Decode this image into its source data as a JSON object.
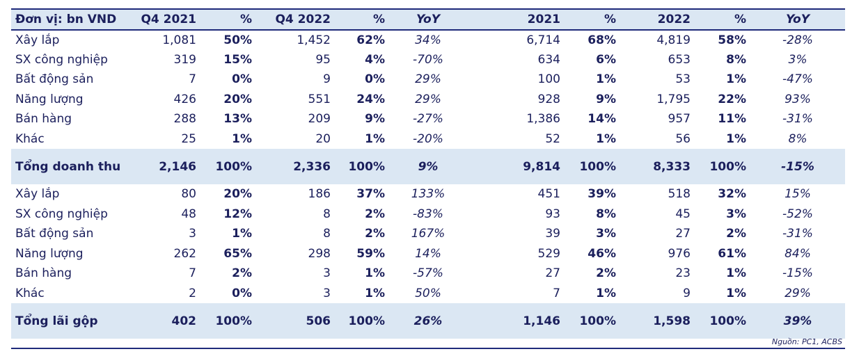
{
  "table": {
    "headers": [
      "Đơn vị: bn VND",
      "Q4 2021",
      "%",
      "Q4 2022",
      "%",
      "YoY",
      "2021",
      "%",
      "2022",
      "%",
      "YoY"
    ],
    "rows": [
      {
        "label": "Xây lắp",
        "cells": [
          "1,081",
          "50%",
          "1,452",
          "62%",
          "34%",
          "6,714",
          "68%",
          "4,819",
          "58%",
          "-28%"
        ]
      },
      {
        "label": "SX công nghiệp",
        "cells": [
          "319",
          "15%",
          "95",
          "4%",
          "-70%",
          "634",
          "6%",
          "653",
          "8%",
          "3%"
        ]
      },
      {
        "label": "Bất động sản",
        "cells": [
          "7",
          "0%",
          "9",
          "0%",
          "29%",
          "100",
          "1%",
          "53",
          "1%",
          "-47%"
        ]
      },
      {
        "label": "Năng lượng",
        "cells": [
          "426",
          "20%",
          "551",
          "24%",
          "29%",
          "928",
          "9%",
          "1,795",
          "22%",
          "93%"
        ]
      },
      {
        "label": "Bán hàng",
        "cells": [
          "288",
          "13%",
          "209",
          "9%",
          "-27%",
          "1,386",
          "14%",
          "957",
          "11%",
          "-31%"
        ]
      },
      {
        "label": "Khác",
        "cells": [
          "25",
          "1%",
          "20",
          "1%",
          "-20%",
          "52",
          "1%",
          "56",
          "1%",
          "8%"
        ]
      },
      {
        "label": "Tổng doanh thu",
        "cells": [
          "2,146",
          "100%",
          "2,336",
          "100%",
          "9%",
          "9,814",
          "100%",
          "8,333",
          "100%",
          "-15%"
        ],
        "total": true
      },
      {
        "label": "Xây lắp",
        "cells": [
          "80",
          "20%",
          "186",
          "37%",
          "133%",
          "451",
          "39%",
          "518",
          "32%",
          "15%"
        ]
      },
      {
        "label": "SX công nghiệp",
        "cells": [
          "48",
          "12%",
          "8",
          "2%",
          "-83%",
          "93",
          "8%",
          "45",
          "3%",
          "-52%"
        ]
      },
      {
        "label": "Bất động sản",
        "cells": [
          "3",
          "1%",
          "8",
          "2%",
          "167%",
          "39",
          "3%",
          "27",
          "2%",
          "-31%"
        ]
      },
      {
        "label": "Năng lượng",
        "cells": [
          "262",
          "65%",
          "298",
          "59%",
          "14%",
          "529",
          "46%",
          "976",
          "61%",
          "84%"
        ]
      },
      {
        "label": "Bán hàng",
        "cells": [
          "7",
          "2%",
          "3",
          "1%",
          "-57%",
          "27",
          "2%",
          "23",
          "1%",
          "-15%"
        ]
      },
      {
        "label": "Khác",
        "cells": [
          "2",
          "0%",
          "3",
          "1%",
          "50%",
          "7",
          "1%",
          "9",
          "1%",
          "29%"
        ]
      },
      {
        "label": "Tổng lãi gộp",
        "cells": [
          "402",
          "100%",
          "506",
          "100%",
          "26%",
          "1,146",
          "100%",
          "1,598",
          "100%",
          "39%"
        ],
        "total": true
      }
    ]
  },
  "source": "Nguồn: PC1, ACBS",
  "colors": {
    "header_bg": "#dbe7f3",
    "text": "#1b1f5c",
    "rule": "#1f2a7a"
  }
}
